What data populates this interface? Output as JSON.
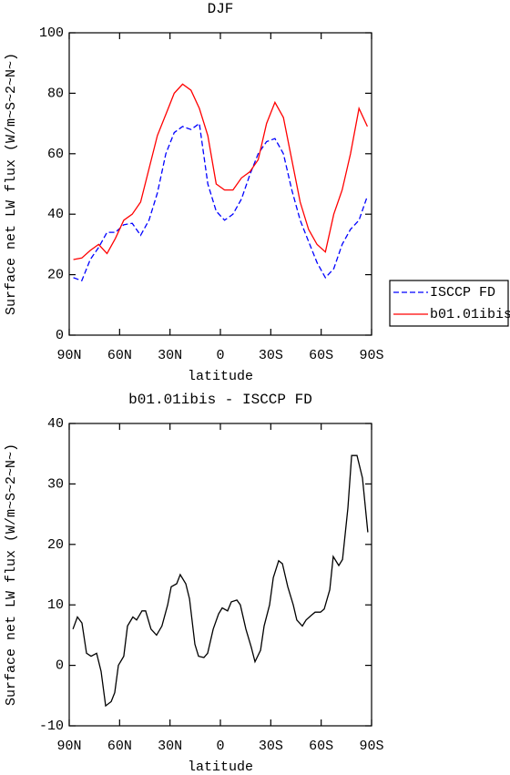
{
  "chart_data": [
    {
      "type": "line",
      "title": "DJF",
      "ylabel": "Surface net LW flux (W/m~S~2~N~)",
      "xlabel": "latitude",
      "x": [
        87.5,
        82.5,
        77.5,
        72.5,
        67.5,
        62.5,
        57.5,
        52.5,
        47.5,
        42.5,
        37.5,
        32.5,
        27.5,
        22.5,
        17.5,
        12.5,
        7.5,
        2.5,
        -2.5,
        -7.5,
        -12.5,
        -17.5,
        -22.5,
        -27.5,
        -32.5,
        -37.5,
        -42.5,
        -47.5,
        -52.5,
        -57.5,
        -62.5,
        -67.5,
        -72.5,
        -77.5,
        -82.5,
        -87.5
      ],
      "series": [
        {
          "name": "ISCCP FD",
          "color": "#0000ff",
          "line_style": "dashed",
          "values": [
            19,
            18,
            25,
            29,
            34,
            34,
            36.5,
            37,
            33,
            38,
            47,
            60,
            67,
            69,
            68,
            70,
            50,
            41,
            38,
            40,
            45,
            53,
            60,
            64,
            65,
            60,
            48,
            38,
            31,
            24,
            19,
            22,
            30,
            35,
            38,
            46
          ]
        },
        {
          "name": "b01.01ibis",
          "color": "#ff0000",
          "line_style": "solid",
          "values": [
            25,
            25.5,
            28,
            30,
            27,
            32,
            38,
            40,
            44,
            55,
            66,
            73,
            80,
            83,
            81,
            75,
            66,
            50,
            48,
            48,
            52,
            54,
            58,
            70,
            77,
            72,
            58,
            44,
            35,
            30,
            27.5,
            40,
            48,
            60,
            75,
            69
          ]
        }
      ],
      "xlim": [
        90,
        -90
      ],
      "xticks": [
        {
          "value": 90,
          "label": "90N"
        },
        {
          "value": 60,
          "label": "60N"
        },
        {
          "value": 30,
          "label": "30N"
        },
        0,
        {
          "value": -30,
          "label": "30S"
        },
        {
          "value": -60,
          "label": "60S"
        },
        {
          "value": -90,
          "label": "90S"
        }
      ],
      "ylim": [
        0,
        100
      ],
      "yticks": [
        0,
        20,
        40,
        60,
        80,
        100
      ],
      "legend": "right"
    },
    {
      "type": "line",
      "title": "b01.01ibis - ISCCP FD",
      "ylabel": "Surface net LW flux (W/m~S~2~N~)",
      "xlabel": "latitude",
      "x": [
        87.8,
        85.1,
        82.4,
        79.7,
        77.0,
        73.7,
        71.0,
        68.3,
        65.0,
        62.9,
        60.7,
        57.5,
        55.3,
        52.1,
        49.9,
        46.7,
        44.5,
        41.3,
        38.0,
        34.8,
        31.4,
        29.3,
        26.0,
        23.9,
        20.6,
        18.4,
        15.2,
        13.0,
        9.8,
        7.6,
        4.3,
        1.1,
        -1.1,
        -4.3,
        -6.5,
        -9.8,
        -11.9,
        -15.2,
        -18.4,
        -20.6,
        -23.9,
        -26.0,
        -29.3,
        -31.5,
        -34.7,
        -36.9,
        -40.1,
        -43.4,
        -45.5,
        -48.8,
        -51.0,
        -54.2,
        -56.4,
        -59.6,
        -61.8,
        -65.1,
        -67.2,
        -70.5,
        -72.7,
        -75.9,
        -78.1,
        -81.3,
        -84.6,
        -87.8
      ],
      "series": [
        {
          "color": "#000000",
          "line_style": "solid",
          "values": [
            6,
            8,
            7,
            2,
            1.5,
            2,
            -1,
            -6.7,
            -6,
            -4.5,
            0,
            1.5,
            6.5,
            8,
            7.5,
            9,
            9,
            6,
            5,
            6.5,
            10,
            13,
            13.5,
            15,
            13.5,
            11,
            3.5,
            1.5,
            1.3,
            2,
            6,
            8.5,
            9.5,
            9,
            10.5,
            10.8,
            10,
            6,
            3,
            0.6,
            2.5,
            6.5,
            10,
            14.5,
            17.3,
            16.8,
            13,
            10,
            7.5,
            6.5,
            7.5,
            8.3,
            8.8,
            8.8,
            9.3,
            12.5,
            18,
            16.5,
            17.5,
            26,
            34.7,
            34.7,
            31,
            22
          ]
        }
      ],
      "xlim": [
        90,
        -90
      ],
      "xticks": [
        {
          "value": 90,
          "label": "90N"
        },
        {
          "value": 60,
          "label": "60N"
        },
        {
          "value": 30,
          "label": "30N"
        },
        0,
        {
          "value": -30,
          "label": "30S"
        },
        {
          "value": -60,
          "label": "60S"
        },
        {
          "value": -90,
          "label": "90S"
        }
      ],
      "ylim": [
        -10,
        40
      ],
      "yticks": [
        -10,
        0,
        10,
        20,
        30,
        40
      ]
    }
  ]
}
